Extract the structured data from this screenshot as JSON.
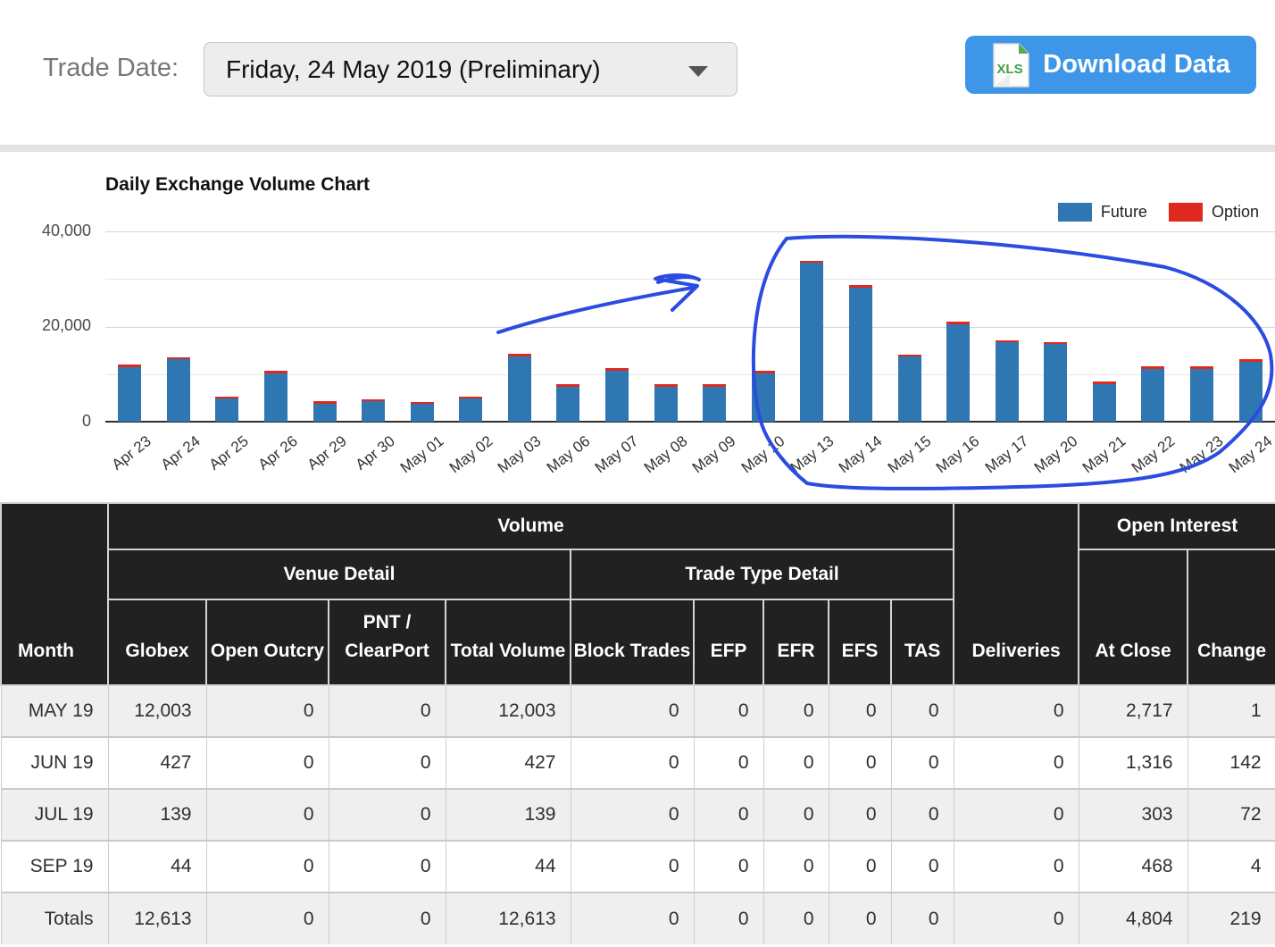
{
  "toolbar": {
    "trade_date_label": "Trade Date:",
    "trade_date_value": "Friday, 24 May 2019 (Preliminary)",
    "download_button_label": "Download Data",
    "xls_icon_text": "XLS",
    "button_color": "#3e96e9"
  },
  "chart": {
    "title": "Daily Exchange Volume Chart",
    "legend": [
      {
        "label": "Future",
        "color": "#2e77b2"
      },
      {
        "label": "Option",
        "color": "#e0291e"
      }
    ],
    "y_ticks": [
      "40,000",
      "20,000",
      "0"
    ],
    "annotation": {
      "color": "#2b4ce0",
      "shapes": [
        "hand-drawn arrow",
        "hand-drawn circle around May 13 - May 24 bars"
      ]
    }
  },
  "chart_data": {
    "type": "bar",
    "stacked": true,
    "title": "Daily Exchange Volume Chart",
    "categories": [
      "Apr 23",
      "Apr 24",
      "Apr 25",
      "Apr 26",
      "Apr 29",
      "Apr 30",
      "May 01",
      "May 02",
      "May 03",
      "May 06",
      "May 07",
      "May 08",
      "May 09",
      "May 10",
      "May 13",
      "May 14",
      "May 15",
      "May 16",
      "May 17",
      "May 20",
      "May 21",
      "May 22",
      "May 23",
      "May 24"
    ],
    "series": [
      {
        "name": "Future",
        "color": "#2e77b2",
        "values": [
          11500,
          13100,
          4800,
          10200,
          3800,
          4300,
          3700,
          4800,
          13800,
          7400,
          10800,
          7400,
          7400,
          10200,
          33400,
          28200,
          13700,
          20500,
          16700,
          16300,
          7900,
          11100,
          11100,
          12613
        ]
      },
      {
        "name": "Option",
        "color": "#e0291e",
        "values": [
          300,
          300,
          300,
          300,
          300,
          300,
          300,
          300,
          300,
          300,
          300,
          300,
          300,
          300,
          300,
          300,
          300,
          300,
          300,
          300,
          300,
          300,
          300,
          300
        ]
      }
    ],
    "ylim": [
      0,
      40000
    ],
    "y_major_gridlines": [
      0,
      20000,
      40000
    ],
    "y_minor_gridlines": [
      10000,
      30000
    ],
    "legend_position": "top-right"
  },
  "table": {
    "group_headers": {
      "volume": "Volume",
      "venue_detail": "Venue Detail",
      "trade_type_detail": "Trade Type Detail",
      "open_interest": "Open Interest"
    },
    "columns": [
      "Month",
      "Globex",
      "Open Outcry",
      "PNT / ClearPort",
      "Total Volume",
      "Block Trades",
      "EFP",
      "EFR",
      "EFS",
      "TAS",
      "Deliveries",
      "At Close",
      "Change"
    ],
    "rows": [
      {
        "month": "MAY 19",
        "cells": [
          "12,003",
          "0",
          "0",
          "12,003",
          "0",
          "0",
          "0",
          "0",
          "0",
          "0",
          "2,717",
          "1"
        ]
      },
      {
        "month": "JUN 19",
        "cells": [
          "427",
          "0",
          "0",
          "427",
          "0",
          "0",
          "0",
          "0",
          "0",
          "0",
          "1,316",
          "142"
        ]
      },
      {
        "month": "JUL 19",
        "cells": [
          "139",
          "0",
          "0",
          "139",
          "0",
          "0",
          "0",
          "0",
          "0",
          "0",
          "303",
          "72"
        ]
      },
      {
        "month": "SEP 19",
        "cells": [
          "44",
          "0",
          "0",
          "44",
          "0",
          "0",
          "0",
          "0",
          "0",
          "0",
          "468",
          "4"
        ]
      },
      {
        "month": "Totals",
        "cells": [
          "12,613",
          "0",
          "0",
          "12,613",
          "0",
          "0",
          "0",
          "0",
          "0",
          "0",
          "4,804",
          "219"
        ],
        "is_totals": true
      }
    ]
  }
}
